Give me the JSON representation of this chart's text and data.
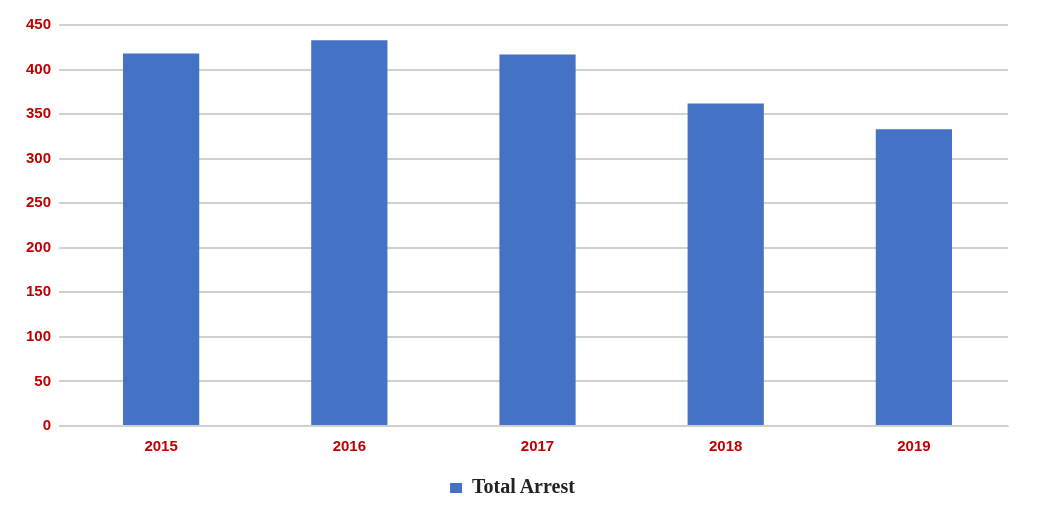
{
  "chart_data": {
    "type": "bar",
    "categories": [
      "2015",
      "2016",
      "2017",
      "2018",
      "2019"
    ],
    "series": [
      {
        "name": "Total Arrest",
        "color": "#4472c4",
        "values": [
          418,
          433,
          417,
          362,
          333
        ]
      }
    ],
    "ylim": [
      0,
      450
    ],
    "yticks": [
      0,
      50,
      100,
      150,
      200,
      250,
      300,
      350,
      400,
      450
    ],
    "grid": "y",
    "legend": "bottom"
  }
}
